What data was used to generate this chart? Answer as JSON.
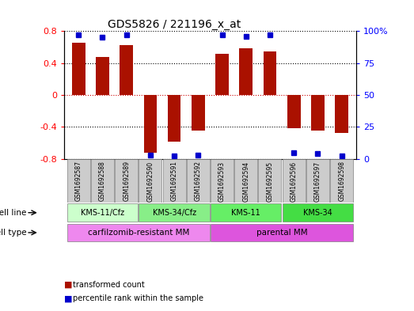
{
  "title": "GDS5826 / 221196_x_at",
  "samples": [
    "GSM1692587",
    "GSM1692588",
    "GSM1692589",
    "GSM1692590",
    "GSM1692591",
    "GSM1692592",
    "GSM1692593",
    "GSM1692594",
    "GSM1692595",
    "GSM1692596",
    "GSM1692597",
    "GSM1692598"
  ],
  "transformed_counts": [
    0.65,
    0.48,
    0.62,
    -0.72,
    -0.59,
    -0.45,
    0.52,
    0.58,
    0.55,
    -0.42,
    -0.45,
    -0.48
  ],
  "percentile_ranks": [
    97,
    95,
    97,
    3,
    2,
    3,
    97,
    96,
    97,
    5,
    4,
    2
  ],
  "bar_color": "#aa1100",
  "dot_color": "#0000cc",
  "ylim_left": [
    -0.8,
    0.8
  ],
  "ylim_right": [
    0,
    100
  ],
  "yticks_left": [
    -0.8,
    -0.4,
    0.0,
    0.4,
    0.8
  ],
  "yticks_right": [
    0,
    25,
    50,
    75,
    100
  ],
  "ytick_labels_left": [
    "-0.8",
    "-0.4",
    "0",
    "0.4",
    "0.8"
  ],
  "ytick_labels_right": [
    "0",
    "25",
    "50",
    "75",
    "100%"
  ],
  "cell_line_groups": [
    {
      "label": "KMS-11/Cfz",
      "start": 0,
      "end": 3,
      "color": "#ccffcc"
    },
    {
      "label": "KMS-34/Cfz",
      "start": 3,
      "end": 6,
      "color": "#88ee88"
    },
    {
      "label": "KMS-11",
      "start": 6,
      "end": 9,
      "color": "#66ee66"
    },
    {
      "label": "KMS-34",
      "start": 9,
      "end": 12,
      "color": "#44dd44"
    }
  ],
  "cell_type_groups": [
    {
      "label": "carfilzomib-resistant MM",
      "start": 0,
      "end": 6,
      "color": "#ee88ee"
    },
    {
      "label": "parental MM",
      "start": 6,
      "end": 12,
      "color": "#dd55dd"
    }
  ],
  "legend_items": [
    {
      "color": "#aa1100",
      "label": "transformed count"
    },
    {
      "color": "#0000cc",
      "label": "percentile rank within the sample"
    }
  ],
  "bar_width": 0.55,
  "grid_color": "black",
  "zero_line_color": "#cc0000",
  "bg_color": "#ffffff",
  "sample_box_color": "#cccccc"
}
